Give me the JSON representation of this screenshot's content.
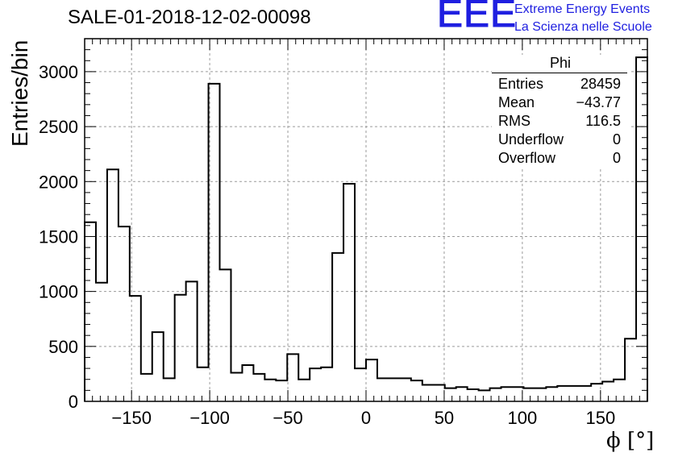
{
  "header": {
    "title": "SALE-01-2018-12-02-00098",
    "logo_mark": "EEE",
    "logo_line1": "Extreme Energy Events",
    "logo_line2": "La Scienza nelle Scuole"
  },
  "colors": {
    "logo": "#1f1fe0",
    "line": "#000000",
    "grid": "#9a9a9a"
  },
  "stats": {
    "title": "Phi",
    "rows": [
      {
        "key": "Entries",
        "value": "28459"
      },
      {
        "key": "Mean",
        "value": "−43.77"
      },
      {
        "key": "RMS",
        "value": "116.5"
      },
      {
        "key": "Underflow",
        "value": "0"
      },
      {
        "key": "Overflow",
        "value": "0"
      }
    ]
  },
  "chart_data": {
    "type": "histogram",
    "xlabel": "ϕ [°]",
    "ylabel": "Entries/bin",
    "xlim": [
      -180,
      180
    ],
    "ylim": [
      0,
      3300
    ],
    "bin_width": 7.2,
    "xticks": [
      -150,
      -100,
      -50,
      0,
      50,
      100,
      150
    ],
    "xtick_labels": [
      "−150",
      "−100",
      "−50",
      "0",
      "50",
      "100",
      "150"
    ],
    "yticks": [
      0,
      500,
      1000,
      1500,
      2000,
      2500,
      3000
    ],
    "ytick_labels": [
      "0",
      "500",
      "1000",
      "1500",
      "2000",
      "2500",
      "3000"
    ],
    "grid": true,
    "values": [
      1630,
      1080,
      2110,
      1590,
      960,
      250,
      630,
      210,
      970,
      1090,
      310,
      2890,
      1200,
      260,
      330,
      250,
      200,
      190,
      430,
      200,
      300,
      310,
      1350,
      1980,
      300,
      380,
      210,
      210,
      210,
      190,
      150,
      150,
      120,
      130,
      110,
      100,
      120,
      130,
      130,
      120,
      120,
      130,
      140,
      140,
      140,
      160,
      180,
      200,
      570,
      3130
    ]
  }
}
